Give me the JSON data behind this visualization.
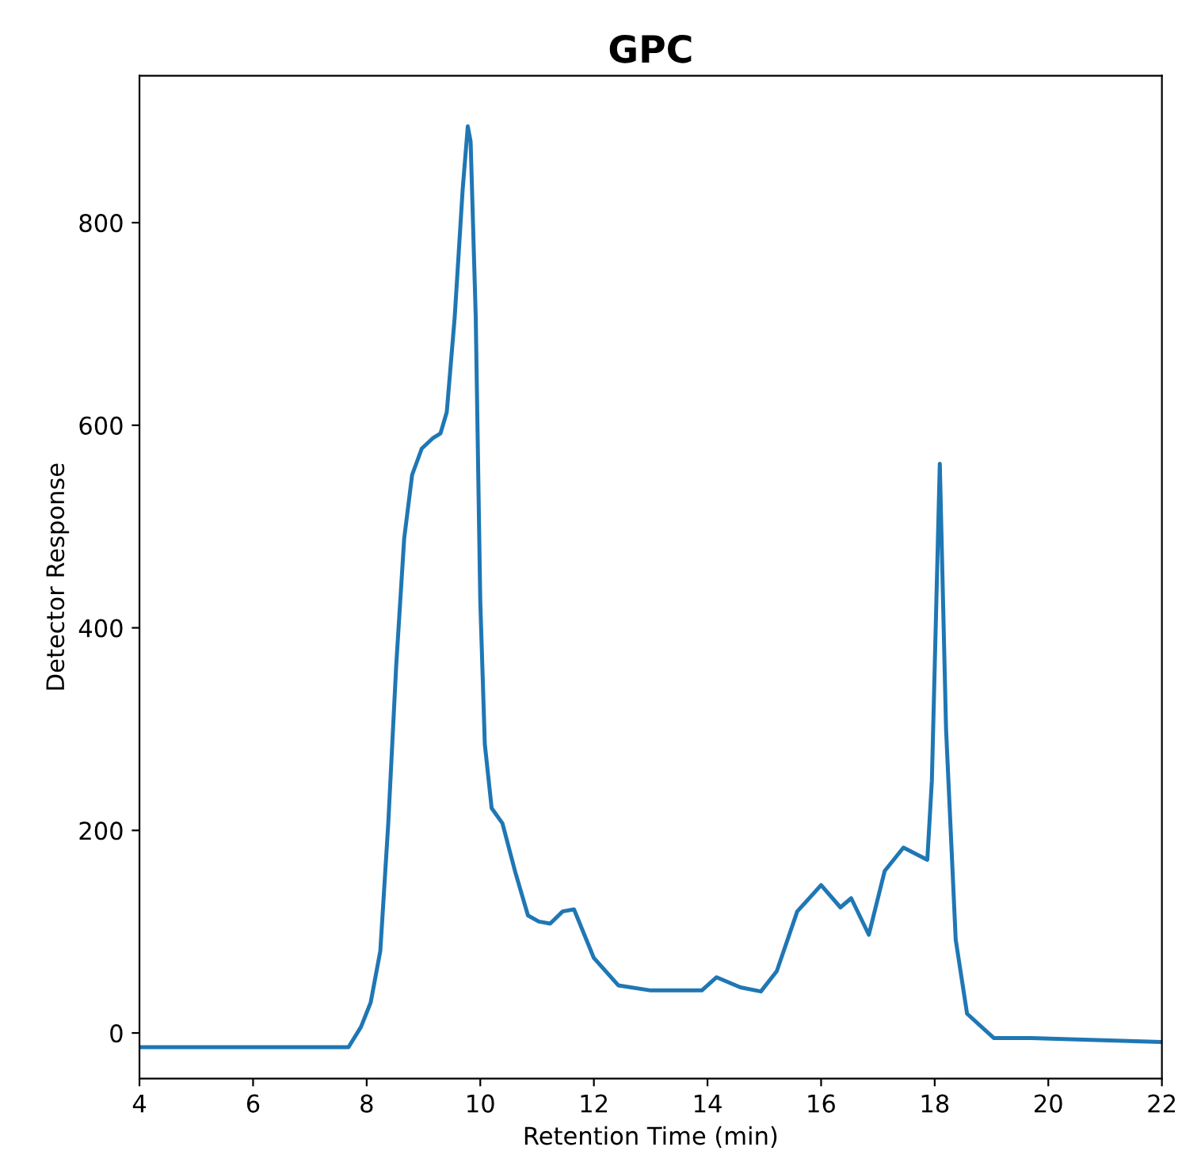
{
  "chart_data": {
    "type": "line",
    "title": "GPC",
    "xlabel": "Retention Time (min)",
    "ylabel": "Detector Response",
    "xlim": [
      4,
      22
    ],
    "xticks": [
      4,
      6,
      8,
      10,
      12,
      14,
      16,
      18,
      20,
      22
    ],
    "ylim": [
      -45,
      945
    ],
    "yticks": [
      0,
      200,
      400,
      600,
      800
    ],
    "grid": false,
    "legend": false,
    "series": [
      {
        "color": "#1f77b4",
        "x": [
          4,
          7.68,
          7.9,
          8.07,
          8.24,
          8.38,
          8.52,
          8.66,
          8.8,
          8.97,
          9.16,
          9.3,
          9.41,
          9.55,
          9.69,
          9.78,
          9.83,
          9.92,
          10.0,
          10.08,
          10.2,
          10.39,
          10.61,
          10.84,
          11.03,
          11.23,
          11.45,
          11.65,
          12.0,
          12.43,
          13.0,
          13.9,
          14.16,
          14.58,
          14.94,
          15.22,
          15.58,
          16.0,
          16.34,
          16.53,
          16.84,
          17.12,
          17.45,
          17.87,
          17.95,
          18.09,
          18.2,
          18.37,
          18.57,
          19.04,
          19.7,
          22
        ],
        "values": [
          -14,
          -14,
          6,
          30,
          81,
          207,
          363,
          488,
          551,
          577,
          587,
          592,
          613,
          707,
          833,
          895,
          880,
          707,
          426,
          285,
          222,
          207,
          160,
          116,
          110,
          108,
          120,
          122,
          74,
          47,
          42,
          42,
          55,
          45,
          41,
          61,
          120,
          146,
          124,
          133,
          97,
          160,
          183,
          171,
          249,
          562,
          300,
          92,
          19,
          -5,
          -5,
          -9
        ]
      }
    ]
  }
}
